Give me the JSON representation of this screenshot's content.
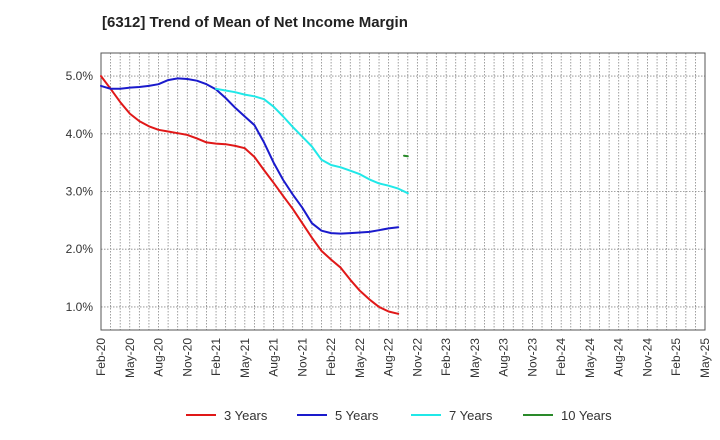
{
  "chart_data": {
    "type": "line",
    "title": "[6312]  Trend of Mean of Net Income Margin",
    "xlabel": "",
    "ylabel": "",
    "ylim": [
      0.6,
      5.4
    ],
    "grid": true,
    "legend_position": "bottom",
    "x_tick_labels": [
      "Feb-20",
      "May-20",
      "Aug-20",
      "Nov-20",
      "Feb-21",
      "May-21",
      "Aug-21",
      "Nov-21",
      "Feb-22",
      "May-22",
      "Aug-22",
      "Nov-22",
      "Feb-23",
      "May-23",
      "Aug-23",
      "Nov-23",
      "Feb-24",
      "May-24",
      "Aug-24",
      "Nov-24",
      "Feb-25",
      "May-25"
    ],
    "y_ticks": [
      1.0,
      2.0,
      3.0,
      4.0,
      5.0
    ],
    "y_tick_labels": [
      "1.0%",
      "2.0%",
      "3.0%",
      "4.0%",
      "5.0%"
    ],
    "series": [
      {
        "name": "3 Years",
        "color": "#e01818",
        "points": [
          [
            0,
            5.0
          ],
          [
            1,
            4.78
          ],
          [
            2,
            4.55
          ],
          [
            3,
            4.35
          ],
          [
            4,
            4.22
          ],
          [
            5,
            4.13
          ],
          [
            6,
            4.07
          ],
          [
            7,
            4.04
          ],
          [
            8,
            4.01
          ],
          [
            9,
            3.98
          ],
          [
            10,
            3.92
          ],
          [
            11,
            3.85
          ],
          [
            12,
            3.83
          ],
          [
            13,
            3.82
          ],
          [
            14,
            3.79
          ],
          [
            15,
            3.75
          ],
          [
            16,
            3.6
          ],
          [
            17,
            3.37
          ],
          [
            18,
            3.15
          ],
          [
            19,
            2.92
          ],
          [
            20,
            2.7
          ],
          [
            21,
            2.45
          ],
          [
            22,
            2.2
          ],
          [
            23,
            1.97
          ],
          [
            24,
            1.82
          ],
          [
            25,
            1.68
          ],
          [
            26,
            1.47
          ],
          [
            27,
            1.28
          ],
          [
            28,
            1.13
          ],
          [
            29,
            1.0
          ],
          [
            30,
            0.92
          ],
          [
            31,
            0.88
          ]
        ]
      },
      {
        "name": "5 Years",
        "color": "#1a1acc",
        "points": [
          [
            0,
            4.83
          ],
          [
            1,
            4.78
          ],
          [
            2,
            4.78
          ],
          [
            3,
            4.8
          ],
          [
            4,
            4.81
          ],
          [
            5,
            4.83
          ],
          [
            6,
            4.86
          ],
          [
            7,
            4.93
          ],
          [
            8,
            4.96
          ],
          [
            9,
            4.95
          ],
          [
            10,
            4.92
          ],
          [
            11,
            4.86
          ],
          [
            12,
            4.77
          ],
          [
            13,
            4.62
          ],
          [
            14,
            4.45
          ],
          [
            15,
            4.3
          ],
          [
            16,
            4.15
          ],
          [
            17,
            3.85
          ],
          [
            18,
            3.5
          ],
          [
            19,
            3.2
          ],
          [
            20,
            2.95
          ],
          [
            21,
            2.72
          ],
          [
            22,
            2.45
          ],
          [
            23,
            2.32
          ],
          [
            24,
            2.28
          ],
          [
            25,
            2.27
          ],
          [
            26,
            2.28
          ],
          [
            27,
            2.29
          ],
          [
            28,
            2.3
          ],
          [
            29,
            2.33
          ],
          [
            30,
            2.36
          ],
          [
            31,
            2.38
          ]
        ]
      },
      {
        "name": "7 Years",
        "color": "#20e8e8",
        "points": [
          [
            12,
            4.78
          ],
          [
            13,
            4.75
          ],
          [
            14,
            4.72
          ],
          [
            15,
            4.68
          ],
          [
            16,
            4.65
          ],
          [
            17,
            4.6
          ],
          [
            18,
            4.47
          ],
          [
            19,
            4.3
          ],
          [
            20,
            4.12
          ],
          [
            21,
            3.95
          ],
          [
            22,
            3.78
          ],
          [
            23,
            3.55
          ],
          [
            24,
            3.46
          ],
          [
            25,
            3.42
          ],
          [
            26,
            3.36
          ],
          [
            27,
            3.3
          ],
          [
            28,
            3.21
          ],
          [
            29,
            3.14
          ],
          [
            30,
            3.1
          ],
          [
            31,
            3.05
          ],
          [
            32,
            2.97
          ]
        ]
      },
      {
        "name": "10 Years",
        "color": "#2a8a2a",
        "points": [
          [
            31.6,
            3.62
          ],
          [
            32,
            3.61
          ]
        ]
      }
    ]
  }
}
